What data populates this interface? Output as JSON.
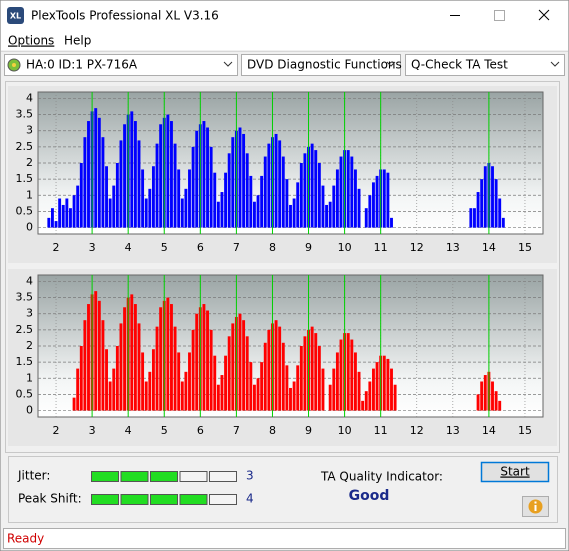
{
  "window": {
    "icon": "XL",
    "title": "PlexTools Professional XL V3.16"
  },
  "menu": [
    "Options",
    "Help"
  ],
  "toolbar": {
    "drive": "HA:0 ID:1  PX-716A",
    "function": "DVD Diagnostic Functions",
    "test": "Q-Check TA Test"
  },
  "chart_data": [
    {
      "type": "bar",
      "color": "#0000ff",
      "x": [
        1.8,
        1.9,
        2.0,
        2.1,
        2.2,
        2.3,
        2.4,
        2.5,
        2.6,
        2.7,
        2.8,
        2.9,
        3.0,
        3.1,
        3.2,
        3.3,
        3.4,
        3.5,
        3.6,
        3.7,
        3.8,
        3.9,
        4.0,
        4.1,
        4.2,
        4.3,
        4.4,
        4.5,
        4.6,
        4.7,
        4.8,
        4.9,
        5.0,
        5.1,
        5.2,
        5.3,
        5.4,
        5.5,
        5.6,
        5.7,
        5.8,
        5.9,
        6.0,
        6.1,
        6.2,
        6.3,
        6.4,
        6.5,
        6.6,
        6.7,
        6.8,
        6.9,
        7.0,
        7.1,
        7.2,
        7.3,
        7.4,
        7.5,
        7.6,
        7.7,
        7.8,
        7.9,
        8.0,
        8.1,
        8.2,
        8.3,
        8.4,
        8.5,
        8.6,
        8.7,
        8.8,
        8.9,
        9.0,
        9.1,
        9.2,
        9.3,
        9.4,
        9.5,
        9.6,
        9.7,
        9.8,
        9.9,
        10.0,
        10.1,
        10.2,
        10.3,
        10.4,
        10.5,
        10.6,
        10.7,
        10.8,
        10.9,
        11.0,
        11.1,
        11.2,
        11.3,
        11.4,
        11.5,
        11.6,
        11.7,
        11.8,
        11.9,
        12.0,
        12.1,
        12.2,
        12.3,
        12.4,
        12.5,
        12.6,
        12.7,
        12.8,
        12.9,
        13.0,
        13.1,
        13.2,
        13.3,
        13.4,
        13.5,
        13.6,
        13.7,
        13.8,
        13.9,
        14.0,
        14.1,
        14.2,
        14.3,
        14.4,
        14.5
      ],
      "values": [
        0.3,
        0.6,
        0.2,
        0.9,
        0.7,
        0.9,
        0.6,
        1.0,
        1.3,
        2.0,
        2.8,
        3.3,
        3.6,
        3.7,
        3.4,
        2.8,
        1.9,
        0.9,
        1.3,
        2.0,
        2.7,
        3.2,
        3.5,
        3.6,
        3.3,
        2.7,
        1.8,
        0.9,
        1.2,
        1.9,
        2.6,
        3.2,
        3.4,
        3.5,
        3.3,
        2.6,
        1.8,
        0.9,
        1.2,
        1.8,
        2.5,
        3.0,
        3.2,
        3.3,
        3.1,
        2.5,
        1.7,
        0.8,
        1.1,
        1.7,
        2.3,
        2.8,
        3.0,
        3.1,
        2.9,
        2.3,
        1.6,
        0.8,
        1.0,
        1.6,
        2.2,
        2.6,
        2.8,
        2.9,
        2.7,
        2.2,
        1.5,
        0.7,
        0.9,
        1.4,
        2.0,
        2.3,
        2.5,
        2.6,
        2.4,
        2.0,
        1.3,
        0.7,
        0.8,
        1.3,
        1.8,
        2.2,
        2.4,
        2.4,
        2.2,
        1.8,
        1.2,
        0,
        0.6,
        1.0,
        1.4,
        1.6,
        1.8,
        1.8,
        1.7,
        0.3,
        0,
        0,
        0,
        0,
        0,
        0,
        0,
        0,
        0,
        0,
        0,
        0,
        0,
        0,
        0,
        0,
        0,
        0,
        0,
        0,
        0,
        0.6,
        0.6,
        1.1,
        1.5,
        1.9,
        2.0,
        1.9,
        1.5,
        0.9,
        0.3,
        0
      ],
      "xlim": [
        1.5,
        15.5
      ],
      "xticks": [
        2,
        3,
        4,
        5,
        6,
        7,
        8,
        9,
        10,
        11,
        12,
        13,
        14,
        15
      ],
      "ylim": [
        -0.2,
        4.2
      ],
      "yticks": [
        0,
        0.5,
        1,
        1.5,
        2,
        2.5,
        3,
        3.5,
        4
      ],
      "grid": true,
      "markers": [
        3,
        4,
        5,
        6,
        7,
        8,
        9,
        10,
        11,
        14
      ],
      "marker_color": "#00d000"
    },
    {
      "type": "bar",
      "color": "#ff0000",
      "x": [
        1.8,
        1.9,
        2.0,
        2.1,
        2.2,
        2.3,
        2.4,
        2.5,
        2.6,
        2.7,
        2.8,
        2.9,
        3.0,
        3.1,
        3.2,
        3.3,
        3.4,
        3.5,
        3.6,
        3.7,
        3.8,
        3.9,
        4.0,
        4.1,
        4.2,
        4.3,
        4.4,
        4.5,
        4.6,
        4.7,
        4.8,
        4.9,
        5.0,
        5.1,
        5.2,
        5.3,
        5.4,
        5.5,
        5.6,
        5.7,
        5.8,
        5.9,
        6.0,
        6.1,
        6.2,
        6.3,
        6.4,
        6.5,
        6.6,
        6.7,
        6.8,
        6.9,
        7.0,
        7.1,
        7.2,
        7.3,
        7.4,
        7.5,
        7.6,
        7.7,
        7.8,
        7.9,
        8.0,
        8.1,
        8.2,
        8.3,
        8.4,
        8.5,
        8.6,
        8.7,
        8.8,
        8.9,
        9.0,
        9.1,
        9.2,
        9.3,
        9.4,
        9.5,
        9.6,
        9.7,
        9.8,
        9.9,
        10.0,
        10.1,
        10.2,
        10.3,
        10.4,
        10.5,
        10.6,
        10.7,
        10.8,
        10.9,
        11.0,
        11.1,
        11.2,
        11.3,
        11.4,
        11.5,
        11.6,
        11.7,
        11.8,
        11.9,
        12.0,
        12.1,
        12.2,
        12.3,
        12.4,
        12.5,
        12.6,
        12.7,
        12.8,
        12.9,
        13.0,
        13.1,
        13.2,
        13.3,
        13.4,
        13.5,
        13.6,
        13.7,
        13.8,
        13.9,
        14.0,
        14.1,
        14.2,
        14.3,
        14.4,
        14.5
      ],
      "values": [
        0,
        0,
        0,
        0,
        0,
        0,
        0,
        0.4,
        1.3,
        2.0,
        2.8,
        3.3,
        3.6,
        3.7,
        3.4,
        2.8,
        1.9,
        0.9,
        1.3,
        2.0,
        2.7,
        3.2,
        3.5,
        3.6,
        3.3,
        2.7,
        1.8,
        0.9,
        1.2,
        1.9,
        2.6,
        3.2,
        3.4,
        3.5,
        3.3,
        2.6,
        1.8,
        0.9,
        1.2,
        1.8,
        2.5,
        3.0,
        3.2,
        3.3,
        3.1,
        2.5,
        1.7,
        0.8,
        1.1,
        1.7,
        2.3,
        2.7,
        2.9,
        3.0,
        2.8,
        2.3,
        1.5,
        0.8,
        1.0,
        1.5,
        2.1,
        2.5,
        2.7,
        2.8,
        2.6,
        2.1,
        1.4,
        0.7,
        0.9,
        1.4,
        2.0,
        2.3,
        2.5,
        2.6,
        2.4,
        2.0,
        1.3,
        0,
        0.8,
        1.3,
        1.8,
        2.2,
        2.4,
        2.4,
        2.2,
        1.8,
        1.2,
        0.3,
        0.6,
        0.9,
        1.3,
        1.5,
        1.7,
        1.7,
        1.6,
        1.3,
        0.8,
        0,
        0,
        0,
        0,
        0,
        0,
        0,
        0,
        0,
        0,
        0,
        0,
        0,
        0,
        0,
        0,
        0,
        0,
        0,
        0,
        0,
        0,
        0.5,
        0.9,
        1.1,
        1.2,
        0.9,
        0.6,
        0.3,
        0,
        0
      ],
      "xlim": [
        1.5,
        15.5
      ],
      "xticks": [
        2,
        3,
        4,
        5,
        6,
        7,
        8,
        9,
        10,
        11,
        12,
        13,
        14,
        15
      ],
      "ylim": [
        -0.2,
        4.2
      ],
      "yticks": [
        0,
        0.5,
        1,
        1.5,
        2,
        2.5,
        3,
        3.5,
        4
      ],
      "grid": true,
      "markers": [
        3,
        4,
        5,
        6,
        7,
        8,
        9,
        10,
        11,
        14
      ],
      "marker_color": "#00d000"
    }
  ],
  "results": {
    "jitter_label": "Jitter:",
    "jitter": 3,
    "peak_shift_label": "Peak Shift:",
    "peak_shift": 4,
    "ta_label": "TA Quality Indicator:",
    "ta_value": "Good",
    "start": "Start"
  },
  "status": "Ready"
}
